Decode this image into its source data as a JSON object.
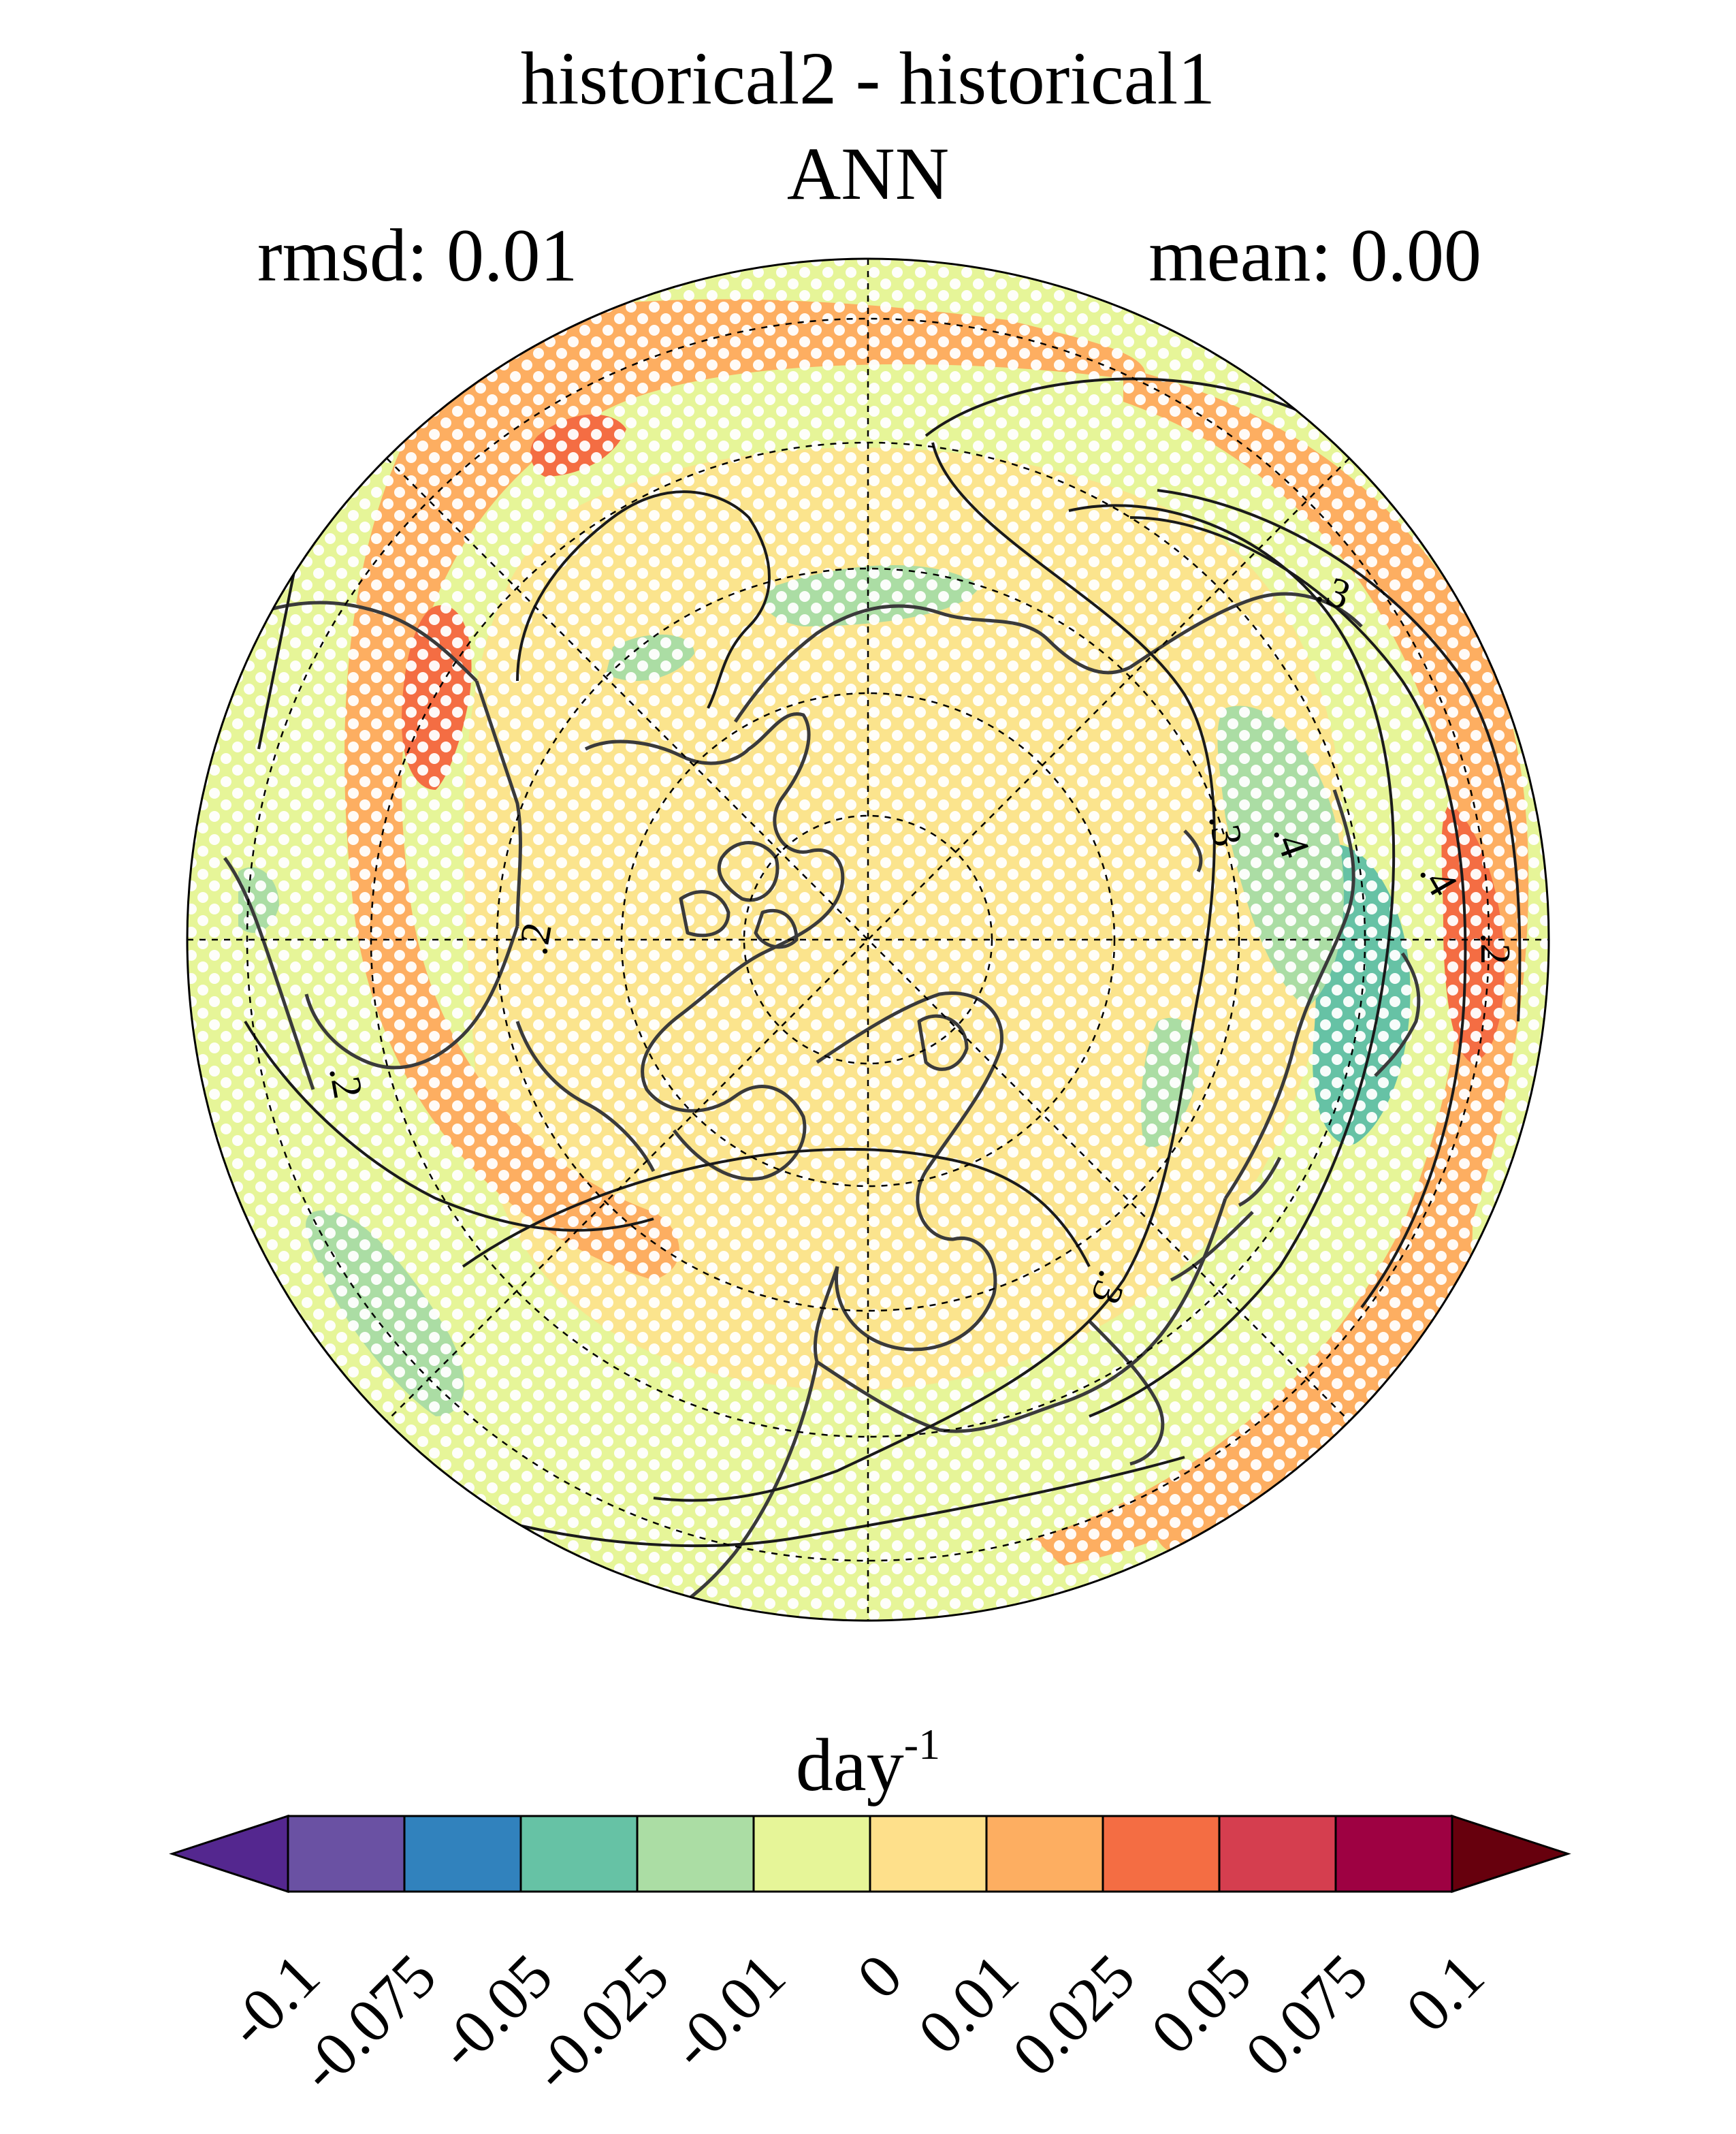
{
  "title": "historical2 - historical1",
  "subtitle": "ANN",
  "stats": {
    "rmsd": "rmsd: 0.01",
    "mean": "mean: 0.00"
  },
  "colorbar": {
    "units_base": "day",
    "units_exp": "-1",
    "levels": [
      "-0.1",
      "-0.075",
      "-0.05",
      "-0.025",
      "-0.01",
      "0",
      "0.01",
      "0.025",
      "0.05",
      "0.075",
      "0.1"
    ],
    "colors": [
      "#54278f",
      "#6a51a3",
      "#3182bd",
      "#66c2a5",
      "#abdda4",
      "#e6f598",
      "#fee08b",
      "#fdae61",
      "#f46d43",
      "#d53e4f",
      "#9e0142",
      "#67000d"
    ]
  },
  "contour_labels": [
    ".2",
    ".3",
    ".4",
    ".2",
    ".3",
    ".2",
    ".3",
    ".4"
  ],
  "map": {
    "projection": "north-polar-stereographic",
    "background_color": "#e6f598",
    "coastline_color": "#3a3a3a",
    "stipple_color": "#ffffff"
  }
}
